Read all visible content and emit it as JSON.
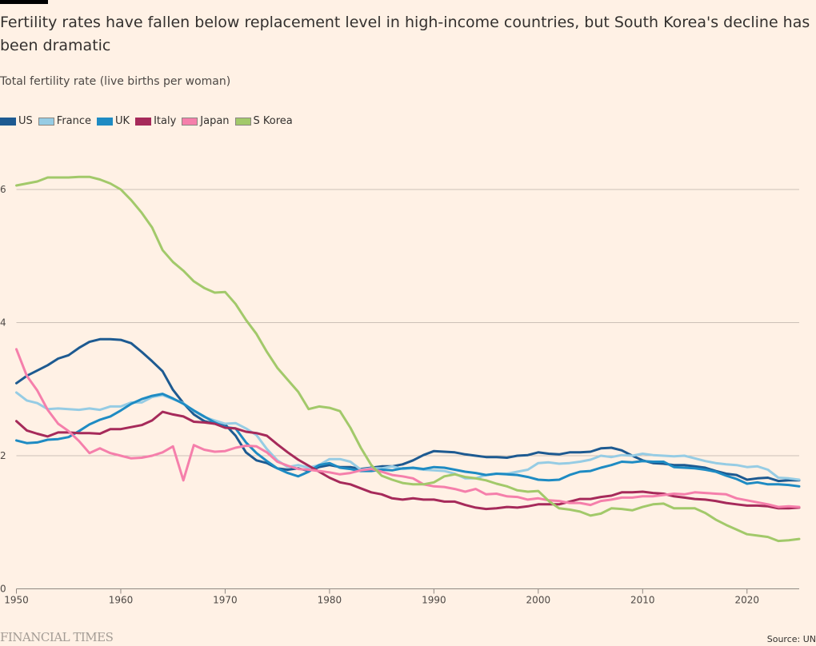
{
  "header": {
    "title": "Fertility rates have fallen below replacement level in high-income countries, but South Korea's decline has been dramatic",
    "subtitle": "Total fertility rate (live births per woman)"
  },
  "footer": {
    "logo": "FINANCIAL TIMES",
    "source": "Source: UN"
  },
  "chart_data": {
    "type": "line",
    "title": "Fertility rates have fallen below replacement level in high-income countries, but South Korea's decline has been dramatic",
    "ylabel": "Total fertility rate (live births per woman)",
    "xlabel": "",
    "xlim": [
      1950,
      2025
    ],
    "ylim": [
      0,
      6.6
    ],
    "x_ticks": [
      1950,
      1960,
      1970,
      1980,
      1990,
      2000,
      2010,
      2020
    ],
    "x_tick_labels": [
      "1950",
      "1960",
      "1970",
      "1980",
      "1990",
      "2000",
      "2010",
      "2020"
    ],
    "y_ticks": [
      0,
      2,
      4,
      6
    ],
    "y_tick_labels": [
      "0",
      "2",
      "4",
      "6"
    ],
    "grid": true,
    "legend_position": "top-left",
    "x": [
      1950,
      1951,
      1952,
      1953,
      1954,
      1955,
      1956,
      1957,
      1958,
      1959,
      1960,
      1961,
      1962,
      1963,
      1964,
      1965,
      1966,
      1967,
      1968,
      1969,
      1970,
      1971,
      1972,
      1973,
      1974,
      1975,
      1976,
      1977,
      1978,
      1979,
      1980,
      1981,
      1982,
      1983,
      1984,
      1985,
      1986,
      1987,
      1988,
      1989,
      1990,
      1991,
      1992,
      1993,
      1994,
      1995,
      1996,
      1997,
      1998,
      1999,
      2000,
      2001,
      2002,
      2003,
      2004,
      2005,
      2006,
      2007,
      2008,
      2009,
      2010,
      2011,
      2012,
      2013,
      2014,
      2015,
      2016,
      2017,
      2018,
      2019,
      2020,
      2021,
      2022,
      2023,
      2024,
      2025
    ],
    "series": [
      {
        "name": "US",
        "color": "#1d5a91",
        "values": [
          3.09,
          3.2,
          3.28,
          3.36,
          3.46,
          3.51,
          3.62,
          3.71,
          3.75,
          3.75,
          3.74,
          3.69,
          3.56,
          3.42,
          3.27,
          2.99,
          2.79,
          2.62,
          2.52,
          2.48,
          2.47,
          2.3,
          2.05,
          1.93,
          1.89,
          1.81,
          1.79,
          1.81,
          1.77,
          1.83,
          1.86,
          1.83,
          1.83,
          1.8,
          1.82,
          1.84,
          1.84,
          1.87,
          1.93,
          2.01,
          2.07,
          2.06,
          2.05,
          2.02,
          2.0,
          1.98,
          1.98,
          1.97,
          2.0,
          2.01,
          2.05,
          2.03,
          2.02,
          2.05,
          2.05,
          2.06,
          2.11,
          2.12,
          2.08,
          2.0,
          1.93,
          1.89,
          1.88,
          1.86,
          1.86,
          1.84,
          1.82,
          1.77,
          1.73,
          1.71,
          1.64,
          1.66,
          1.67,
          1.62,
          1.63,
          1.63
        ]
      },
      {
        "name": "France",
        "color": "#96cce4",
        "values": [
          2.95,
          2.83,
          2.79,
          2.7,
          2.71,
          2.7,
          2.69,
          2.71,
          2.69,
          2.74,
          2.74,
          2.8,
          2.8,
          2.88,
          2.91,
          2.85,
          2.79,
          2.67,
          2.58,
          2.53,
          2.48,
          2.49,
          2.41,
          2.31,
          2.1,
          1.93,
          1.83,
          1.86,
          1.82,
          1.86,
          1.95,
          1.95,
          1.91,
          1.79,
          1.81,
          1.81,
          1.84,
          1.8,
          1.81,
          1.79,
          1.78,
          1.77,
          1.73,
          1.66,
          1.66,
          1.71,
          1.73,
          1.73,
          1.76,
          1.79,
          1.89,
          1.9,
          1.88,
          1.89,
          1.91,
          1.94,
          2.0,
          1.98,
          2.01,
          2.0,
          2.03,
          2.01,
          2.0,
          1.99,
          2.0,
          1.96,
          1.92,
          1.89,
          1.87,
          1.86,
          1.83,
          1.84,
          1.79,
          1.67,
          1.66,
          1.64
        ]
      },
      {
        "name": "UK",
        "color": "#1e8bc3",
        "values": [
          2.23,
          2.19,
          2.2,
          2.24,
          2.25,
          2.28,
          2.37,
          2.47,
          2.54,
          2.59,
          2.68,
          2.78,
          2.85,
          2.9,
          2.93,
          2.86,
          2.78,
          2.68,
          2.59,
          2.5,
          2.43,
          2.41,
          2.2,
          2.04,
          1.92,
          1.81,
          1.74,
          1.69,
          1.76,
          1.86,
          1.89,
          1.82,
          1.8,
          1.77,
          1.77,
          1.79,
          1.78,
          1.81,
          1.82,
          1.8,
          1.83,
          1.82,
          1.79,
          1.76,
          1.74,
          1.71,
          1.73,
          1.72,
          1.71,
          1.68,
          1.64,
          1.63,
          1.64,
          1.71,
          1.76,
          1.77,
          1.82,
          1.86,
          1.91,
          1.9,
          1.92,
          1.91,
          1.91,
          1.83,
          1.82,
          1.81,
          1.79,
          1.76,
          1.7,
          1.65,
          1.58,
          1.6,
          1.57,
          1.57,
          1.56,
          1.54
        ]
      },
      {
        "name": "Italy",
        "color": "#a62a5a",
        "values": [
          2.52,
          2.38,
          2.33,
          2.29,
          2.35,
          2.35,
          2.34,
          2.34,
          2.33,
          2.4,
          2.4,
          2.43,
          2.46,
          2.53,
          2.66,
          2.62,
          2.59,
          2.51,
          2.5,
          2.48,
          2.42,
          2.41,
          2.36,
          2.34,
          2.3,
          2.17,
          2.05,
          1.94,
          1.85,
          1.76,
          1.67,
          1.6,
          1.57,
          1.51,
          1.45,
          1.42,
          1.36,
          1.34,
          1.36,
          1.34,
          1.34,
          1.31,
          1.31,
          1.26,
          1.22,
          1.2,
          1.21,
          1.23,
          1.22,
          1.24,
          1.27,
          1.27,
          1.27,
          1.31,
          1.35,
          1.35,
          1.38,
          1.4,
          1.45,
          1.45,
          1.46,
          1.44,
          1.43,
          1.39,
          1.37,
          1.35,
          1.34,
          1.32,
          1.29,
          1.27,
          1.25,
          1.25,
          1.24,
          1.21,
          1.21,
          1.22
        ]
      },
      {
        "name": "Japan",
        "color": "#f57fab",
        "values": [
          3.6,
          3.2,
          2.98,
          2.69,
          2.48,
          2.37,
          2.22,
          2.04,
          2.11,
          2.04,
          2.0,
          1.96,
          1.97,
          2.0,
          2.05,
          2.14,
          1.63,
          2.16,
          2.09,
          2.06,
          2.07,
          2.12,
          2.15,
          2.14,
          2.05,
          1.91,
          1.85,
          1.8,
          1.79,
          1.77,
          1.75,
          1.72,
          1.74,
          1.78,
          1.8,
          1.76,
          1.71,
          1.69,
          1.66,
          1.57,
          1.54,
          1.53,
          1.5,
          1.46,
          1.5,
          1.42,
          1.43,
          1.39,
          1.38,
          1.34,
          1.36,
          1.33,
          1.32,
          1.29,
          1.29,
          1.26,
          1.32,
          1.34,
          1.37,
          1.37,
          1.39,
          1.39,
          1.41,
          1.43,
          1.42,
          1.45,
          1.44,
          1.43,
          1.42,
          1.36,
          1.33,
          1.3,
          1.27,
          1.23,
          1.24,
          1.23
        ]
      },
      {
        "name": "S Korea",
        "color": "#a2c96a",
        "values": [
          6.06,
          6.09,
          6.12,
          6.18,
          6.18,
          6.18,
          6.19,
          6.19,
          6.15,
          6.09,
          6.0,
          5.84,
          5.65,
          5.43,
          5.09,
          4.91,
          4.78,
          4.62,
          4.52,
          4.45,
          4.46,
          4.28,
          4.04,
          3.83,
          3.56,
          3.32,
          3.14,
          2.96,
          2.7,
          2.74,
          2.72,
          2.67,
          2.42,
          2.12,
          1.86,
          1.7,
          1.64,
          1.59,
          1.57,
          1.57,
          1.6,
          1.69,
          1.72,
          1.68,
          1.66,
          1.63,
          1.58,
          1.54,
          1.48,
          1.46,
          1.47,
          1.32,
          1.21,
          1.19,
          1.16,
          1.1,
          1.13,
          1.21,
          1.2,
          1.18,
          1.23,
          1.27,
          1.28,
          1.21,
          1.21,
          1.21,
          1.14,
          1.04,
          0.96,
          0.89,
          0.82,
          0.8,
          0.78,
          0.72,
          0.73,
          0.75
        ]
      }
    ]
  }
}
